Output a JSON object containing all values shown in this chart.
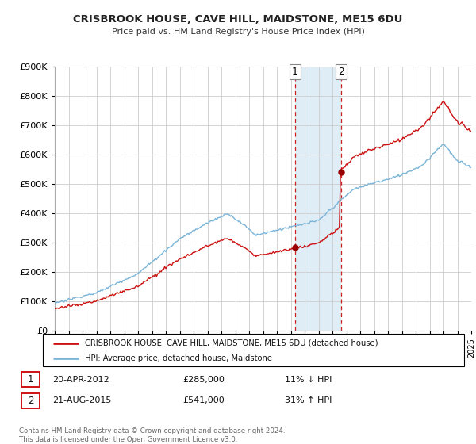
{
  "title1": "CRISBROOK HOUSE, CAVE HILL, MAIDSTONE, ME15 6DU",
  "title2": "Price paid vs. HM Land Registry's House Price Index (HPI)",
  "legend_line1": "CRISBROOK HOUSE, CAVE HILL, MAIDSTONE, ME15 6DU (detached house)",
  "legend_line2": "HPI: Average price, detached house, Maidstone",
  "annotation1_date": "20-APR-2012",
  "annotation1_price": "£285,000",
  "annotation1_hpi": "11% ↓ HPI",
  "annotation2_date": "21-AUG-2015",
  "annotation2_price": "£541,000",
  "annotation2_hpi": "31% ↑ HPI",
  "footer": "Contains HM Land Registry data © Crown copyright and database right 2024.\nThis data is licensed under the Open Government Licence v3.0.",
  "hpi_color": "#7ab4d8",
  "price_color": "#cc1111",
  "shaded_color": "#daeaf5",
  "dashed_color": "#cc2222",
  "ylim_min": 0,
  "ylim_max": 900000,
  "yticks": [
    0,
    100000,
    200000,
    300000,
    400000,
    500000,
    600000,
    700000,
    800000,
    900000
  ],
  "t1_year": 2012.29,
  "t2_year": 2015.62,
  "t1_price": 285000,
  "t2_price": 541000,
  "xmin": 1995,
  "xmax": 2025
}
